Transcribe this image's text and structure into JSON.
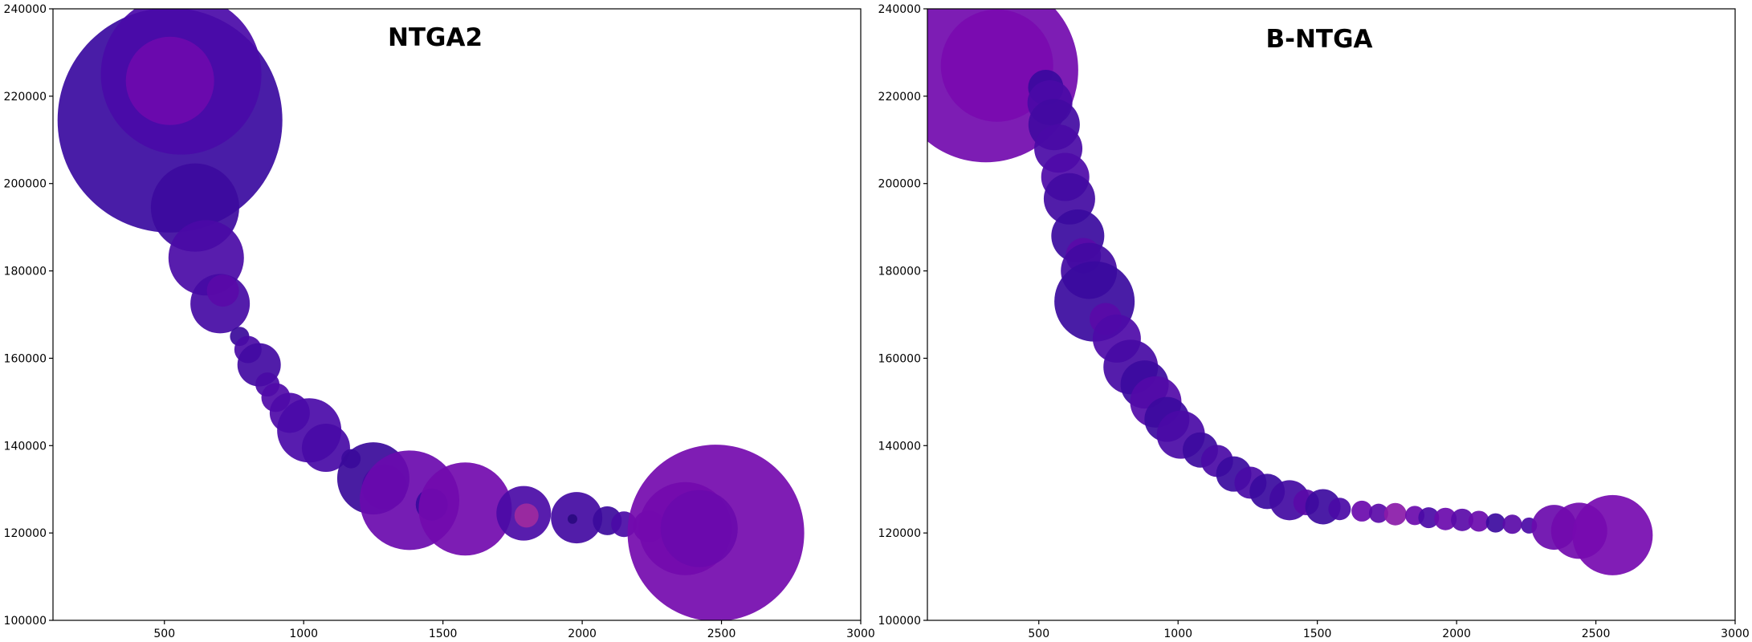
{
  "chart_data": [
    {
      "type": "scatter",
      "title": "NTGA2",
      "xlabel": "",
      "ylabel": "",
      "xlim": [
        100,
        3000
      ],
      "ylim": [
        100000,
        240000
      ],
      "xticks": [
        500,
        1000,
        1500,
        2000,
        2500,
        3000
      ],
      "yticks": [
        100000,
        120000,
        140000,
        160000,
        180000,
        200000,
        220000,
        240000
      ],
      "grid": false,
      "series": [
        {
          "points": [
            {
              "x": 520,
              "y": 214500,
              "r": 140,
              "color": "#3a0aa0"
            },
            {
              "x": 560,
              "y": 225000,
              "r": 100,
              "color": "#4a0aa8"
            },
            {
              "x": 520,
              "y": 223500,
              "r": 55,
              "color": "#6e0aae"
            },
            {
              "x": 610,
              "y": 194500,
              "r": 55,
              "color": "#3d0a9e"
            },
            {
              "x": 650,
              "y": 183000,
              "r": 47,
              "color": "#4a0aa6"
            },
            {
              "x": 700,
              "y": 172500,
              "r": 37,
              "color": "#450aa4"
            },
            {
              "x": 710,
              "y": 175500,
              "r": 20,
              "color": "#5a0aa8"
            },
            {
              "x": 770,
              "y": 165000,
              "r": 12,
              "color": "#3a0a9a"
            },
            {
              "x": 800,
              "y": 162000,
              "r": 17,
              "color": "#4a0aa6"
            },
            {
              "x": 840,
              "y": 158500,
              "r": 27,
              "color": "#420aa2"
            },
            {
              "x": 870,
              "y": 154000,
              "r": 15,
              "color": "#4a0aa6"
            },
            {
              "x": 900,
              "y": 151000,
              "r": 18,
              "color": "#500aa8"
            },
            {
              "x": 950,
              "y": 147500,
              "r": 25,
              "color": "#4e0aa8"
            },
            {
              "x": 1020,
              "y": 143500,
              "r": 40,
              "color": "#4a0aa8"
            },
            {
              "x": 1080,
              "y": 139500,
              "r": 30,
              "color": "#480aa6"
            },
            {
              "x": 1170,
              "y": 137000,
              "r": 12,
              "color": "#3c0a9c"
            },
            {
              "x": 1250,
              "y": 132500,
              "r": 45,
              "color": "#3a0a9a"
            },
            {
              "x": 1290,
              "y": 130500,
              "r": 28,
              "color": "#440aa2"
            },
            {
              "x": 1380,
              "y": 127500,
              "r": 62,
              "color": "#6a0aae"
            },
            {
              "x": 1460,
              "y": 126500,
              "r": 20,
              "color": "#3a0a9e"
            },
            {
              "x": 1580,
              "y": 125500,
              "r": 58,
              "color": "#720aae"
            },
            {
              "x": 1790,
              "y": 124500,
              "r": 34,
              "color": "#4a0aa6"
            },
            {
              "x": 1800,
              "y": 124000,
              "r": 15,
              "color": "#9e2a9e"
            },
            {
              "x": 1980,
              "y": 123500,
              "r": 32,
              "color": "#430aa2"
            },
            {
              "x": 1965,
              "y": 123200,
              "r": 6,
              "color": "#2a0a80"
            },
            {
              "x": 2090,
              "y": 122800,
              "r": 18,
              "color": "#3c0a9c"
            },
            {
              "x": 2150,
              "y": 122000,
              "r": 16,
              "color": "#4a0aa6"
            },
            {
              "x": 2240,
              "y": 121500,
              "r": 20,
              "color": "#5a0aa8"
            },
            {
              "x": 2370,
              "y": 121000,
              "r": 58,
              "color": "#6a0aac"
            },
            {
              "x": 2480,
              "y": 120000,
              "r": 110,
              "color": "#740aae"
            },
            {
              "x": 2420,
              "y": 121000,
              "r": 48,
              "color": "#6a0aac"
            }
          ]
        }
      ]
    },
    {
      "type": "scatter",
      "title": "B-NTGA",
      "xlabel": "",
      "ylabel": "",
      "xlim": [
        100,
        3000
      ],
      "ylim": [
        100000,
        240000
      ],
      "xticks": [
        500,
        1000,
        1500,
        2000,
        2500,
        3000
      ],
      "yticks": [
        100000,
        120000,
        140000,
        160000,
        180000,
        200000,
        220000,
        240000
      ],
      "grid": false,
      "series": [
        {
          "points": [
            {
              "x": 310,
              "y": 226000,
              "r": 115,
              "color": "#720aae"
            },
            {
              "x": 350,
              "y": 227000,
              "r": 70,
              "color": "#7a0ab0"
            },
            {
              "x": 525,
              "y": 222000,
              "r": 22,
              "color": "#3a0a9e"
            },
            {
              "x": 540,
              "y": 218500,
              "r": 28,
              "color": "#4a0aa6"
            },
            {
              "x": 555,
              "y": 213500,
              "r": 32,
              "color": "#420aa2"
            },
            {
              "x": 570,
              "y": 208000,
              "r": 30,
              "color": "#4a0aa6"
            },
            {
              "x": 595,
              "y": 201500,
              "r": 30,
              "color": "#4e0aa8"
            },
            {
              "x": 610,
              "y": 196500,
              "r": 32,
              "color": "#420aa2"
            },
            {
              "x": 640,
              "y": 188000,
              "r": 33,
              "color": "#3a0a9e"
            },
            {
              "x": 660,
              "y": 183500,
              "r": 22,
              "color": "#5a0aa8"
            },
            {
              "x": 680,
              "y": 180000,
              "r": 35,
              "color": "#420aa2"
            },
            {
              "x": 700,
              "y": 173000,
              "r": 50,
              "color": "#3a0a9e"
            },
            {
              "x": 740,
              "y": 169000,
              "r": 20,
              "color": "#5a0aa8"
            },
            {
              "x": 780,
              "y": 164500,
              "r": 30,
              "color": "#4e0aa8"
            },
            {
              "x": 830,
              "y": 158000,
              "r": 34,
              "color": "#460aa4"
            },
            {
              "x": 880,
              "y": 154000,
              "r": 30,
              "color": "#3c0a9e"
            },
            {
              "x": 920,
              "y": 150000,
              "r": 32,
              "color": "#520aa8"
            },
            {
              "x": 960,
              "y": 146000,
              "r": 28,
              "color": "#3c0a9e"
            },
            {
              "x": 1010,
              "y": 142500,
              "r": 30,
              "color": "#4a0aa6"
            },
            {
              "x": 1080,
              "y": 139000,
              "r": 22,
              "color": "#3c0a9e"
            },
            {
              "x": 1140,
              "y": 136500,
              "r": 20,
              "color": "#4a0aa6"
            },
            {
              "x": 1200,
              "y": 133500,
              "r": 22,
              "color": "#3a0a9e"
            },
            {
              "x": 1260,
              "y": 131500,
              "r": 20,
              "color": "#4a0aa6"
            },
            {
              "x": 1320,
              "y": 129500,
              "r": 22,
              "color": "#3a0a9e"
            },
            {
              "x": 1400,
              "y": 127500,
              "r": 25,
              "color": "#420aa2"
            },
            {
              "x": 1460,
              "y": 127000,
              "r": 16,
              "color": "#5a0aa8"
            },
            {
              "x": 1520,
              "y": 126000,
              "r": 22,
              "color": "#3c0a9e"
            },
            {
              "x": 1580,
              "y": 125500,
              "r": 14,
              "color": "#4a0aa6"
            },
            {
              "x": 1660,
              "y": 125000,
              "r": 13,
              "color": "#6a0aac"
            },
            {
              "x": 1720,
              "y": 124500,
              "r": 12,
              "color": "#5a0aa8"
            },
            {
              "x": 1780,
              "y": 124300,
              "r": 14,
              "color": "#8a1aa8"
            },
            {
              "x": 1850,
              "y": 124000,
              "r": 12,
              "color": "#6a0aac"
            },
            {
              "x": 1900,
              "y": 123500,
              "r": 13,
              "color": "#4a0aa6"
            },
            {
              "x": 1960,
              "y": 123200,
              "r": 14,
              "color": "#6a0aac"
            },
            {
              "x": 2020,
              "y": 123000,
              "r": 14,
              "color": "#5a0aa8"
            },
            {
              "x": 2080,
              "y": 122700,
              "r": 13,
              "color": "#6a0aac"
            },
            {
              "x": 2140,
              "y": 122300,
              "r": 12,
              "color": "#3c0a9e"
            },
            {
              "x": 2200,
              "y": 122000,
              "r": 12,
              "color": "#5a0aa8"
            },
            {
              "x": 2260,
              "y": 121700,
              "r": 10,
              "color": "#4a0aa6"
            },
            {
              "x": 2350,
              "y": 121300,
              "r": 28,
              "color": "#6a0aac"
            },
            {
              "x": 2440,
              "y": 120500,
              "r": 35,
              "color": "#720aae"
            },
            {
              "x": 2560,
              "y": 119500,
              "r": 50,
              "color": "#760ab0"
            }
          ]
        }
      ]
    }
  ]
}
